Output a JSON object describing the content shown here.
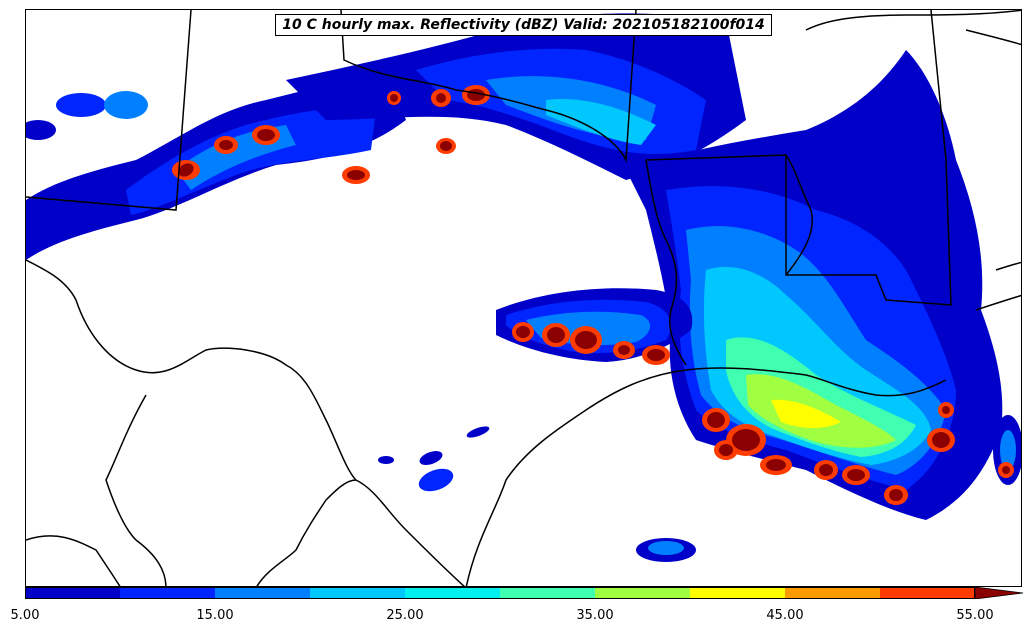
{
  "title": "10 C hourly max. Reflectivity (dBZ) Valid: 202105182100f014",
  "colorbar": {
    "levels": [
      5,
      10,
      15,
      20,
      25,
      30,
      35,
      40,
      45,
      50,
      55
    ],
    "colors": [
      "#0000c8",
      "#0025ff",
      "#0080ff",
      "#00c8ff",
      "#00f0f0",
      "#40ffb0",
      "#a0ff40",
      "#ffff00",
      "#ff9a00",
      "#ff3c00",
      "#b40000",
      "#8b0000"
    ],
    "extend": "max",
    "tick_labels": [
      "5.00",
      "15.00",
      "25.00",
      "35.00",
      "45.00",
      "55.00"
    ]
  }
}
